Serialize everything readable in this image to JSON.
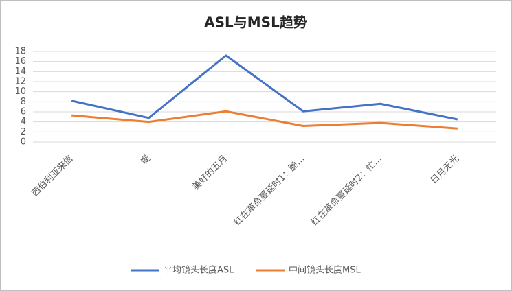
{
  "chart_data": {
    "type": "line",
    "title": "ASL与MSL趋势",
    "categories": [
      "西伯利亚来信",
      "堤",
      "美好的五月",
      "红在革命蔓延时1：脆…",
      "红在革命蔓延时2：忙…",
      "日月无光"
    ],
    "series": [
      {
        "name": "平均镜头长度ASL",
        "color": "#4472c4",
        "values": [
          8.2,
          4.8,
          17.2,
          6.1,
          7.6,
          4.5
        ]
      },
      {
        "name": "中间镜头长度MSL",
        "color": "#ed7d31",
        "values": [
          5.3,
          4.0,
          6.1,
          3.2,
          3.8,
          2.7
        ]
      }
    ],
    "ylim": [
      0,
      18
    ],
    "yticks": [
      0,
      2,
      4,
      6,
      8,
      10,
      12,
      14,
      16,
      18
    ],
    "grid": true,
    "legend": "bottom"
  }
}
